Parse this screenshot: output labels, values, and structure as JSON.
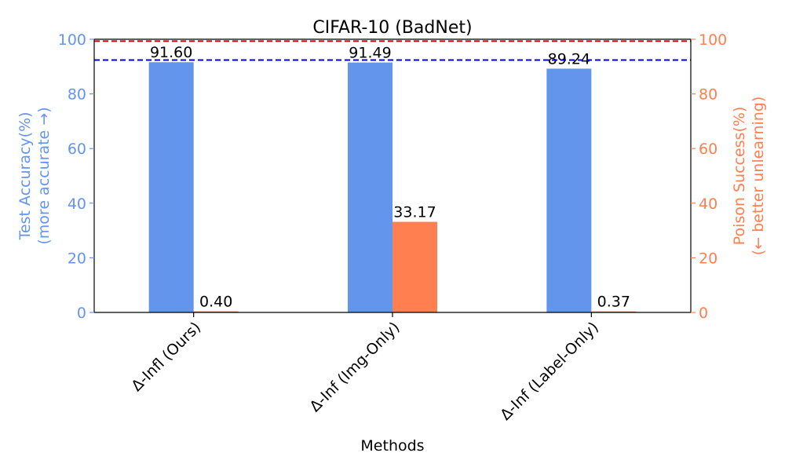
{
  "chart_data": {
    "type": "bar",
    "title": "CIFAR-10 (BadNet)",
    "xlabel": "Methods",
    "ylabel_left": [
      "Test Accuracy(%)",
      "(more accurate →)"
    ],
    "ylabel_right": [
      "Poison Success(%)",
      "(← better unlearning)"
    ],
    "categories": [
      "Δ-Infl (Ours)",
      "Δ-Inf (Img-Only)",
      "Δ-Inf (Label-Only)"
    ],
    "series": [
      {
        "values": [
          91.6,
          91.49,
          89.24
        ],
        "labels": [
          "91.60",
          "91.49",
          "89.24"
        ],
        "axis": "left"
      },
      {
        "values": [
          0.4,
          33.17,
          0.37
        ],
        "labels": [
          "0.40",
          "33.17",
          "0.37"
        ],
        "axis": "right"
      }
    ],
    "ylim_left": [
      0,
      100
    ],
    "ylim_right": [
      0,
      100
    ],
    "yticks": [
      "0",
      "20",
      "40",
      "60",
      "80",
      "100"
    ],
    "reference_lines": [
      {
        "value": 92.4,
        "axis": "left",
        "color": "#0000cc",
        "style": "dashed"
      },
      {
        "value": 99.3,
        "axis": "right",
        "color": "#cc0000",
        "style": "dashed"
      }
    ],
    "grid": false,
    "colors": {
      "accuracy": "#6495ED",
      "poison": "#FF7F50",
      "axis": "#000000"
    }
  }
}
